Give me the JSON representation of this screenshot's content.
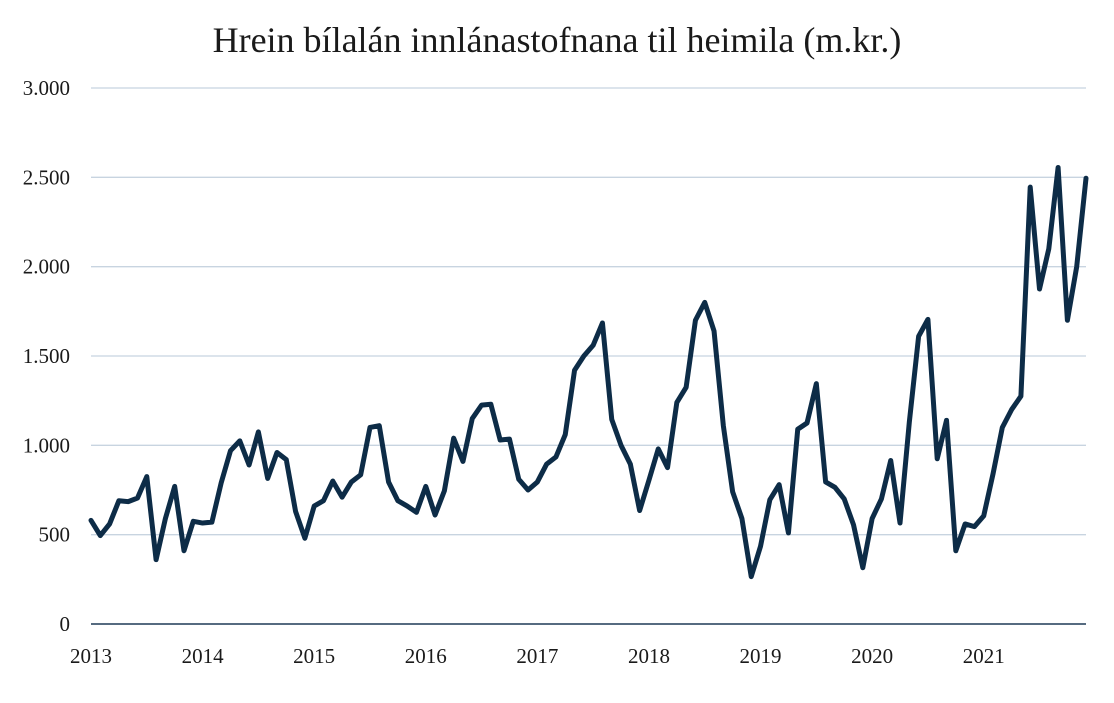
{
  "chart_data": {
    "type": "line",
    "title": "Hrein bílalán innlánastofnana til heimila (m.kr.)",
    "xlabel": "",
    "ylabel": "",
    "ylim": [
      0,
      3000
    ],
    "y_ticks": [
      0,
      500,
      1000,
      1500,
      2000,
      2500,
      3000
    ],
    "y_tick_labels": [
      "0",
      "500",
      "1.000",
      "1.500",
      "2.000",
      "2.500",
      "3.000"
    ],
    "x_tick_labels": [
      "2013",
      "2014",
      "2015",
      "2016",
      "2017",
      "2018",
      "2019",
      "2020",
      "2021"
    ],
    "x_start": "2013-01",
    "x_frequency": "monthly",
    "grid": true,
    "legend": "none",
    "series": [
      {
        "color": "#0d2c47",
        "values": [
          580,
          495,
          560,
          690,
          685,
          705,
          825,
          360,
          590,
          770,
          410,
          575,
          565,
          570,
          790,
          970,
          1025,
          890,
          1075,
          815,
          960,
          920,
          630,
          480,
          660,
          690,
          800,
          710,
          795,
          835,
          1100,
          1110,
          795,
          690,
          660,
          625,
          770,
          610,
          745,
          1040,
          910,
          1150,
          1225,
          1230,
          1030,
          1035,
          810,
          750,
          795,
          895,
          935,
          1060,
          1420,
          1500,
          1560,
          1685,
          1145,
          1000,
          895,
          635,
          805,
          980,
          875,
          1240,
          1325,
          1700,
          1800,
          1640,
          1110,
          740,
          590,
          265,
          435,
          695,
          780,
          510,
          1090,
          1125,
          1345,
          795,
          765,
          700,
          555,
          315,
          590,
          700,
          915,
          565,
          1130,
          1610,
          1705,
          925,
          1140,
          410,
          560,
          545,
          605,
          840,
          1100,
          1200,
          1275,
          2445,
          1875,
          2100,
          2555,
          1700,
          2000,
          2495
        ]
      }
    ]
  }
}
